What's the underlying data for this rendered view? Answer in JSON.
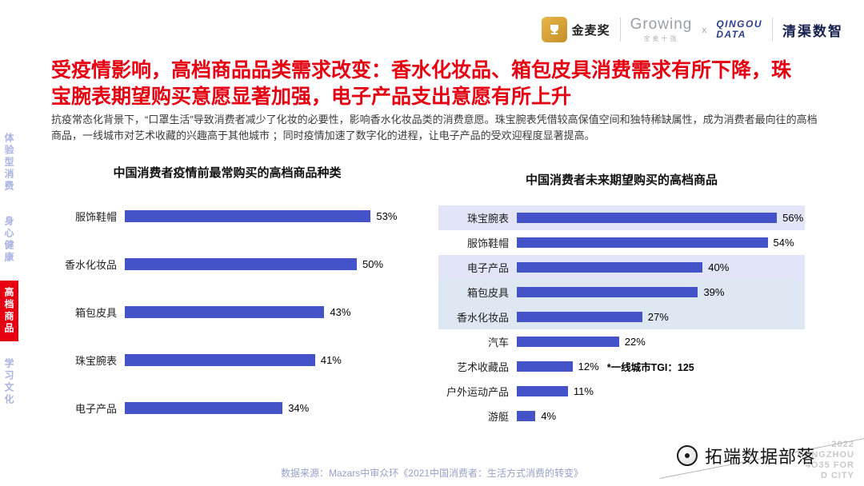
{
  "header": {
    "logos": {
      "jinmai": {
        "name": "金麦奖"
      },
      "growing": {
        "name": "Growing",
        "sub": "金麦十强"
      },
      "separator": "x",
      "qingou": {
        "line1": "QINGOU",
        "line2": "DATA",
        "brand": "清渠数智"
      }
    }
  },
  "title": {
    "text": "受疫情影响，高档商品品类需求改变：香水化妆品、箱包皮具消费需求有所下降，珠宝腕表期望购买意愿显著加强，电子产品支出意愿有所上升",
    "color": "#e60012"
  },
  "intro": "抗疫常态化背景下，“口罩生活”导致消费者减少了化妆的必要性，影响香水化妆品类的消费意愿。珠宝腕表凭借较高保值空间和独特稀缺属性，成为消费者最向往的高档商品，一线城市对艺术收藏的兴趣高于其他城市 ；同时疫情加速了数字化的进程，让电子产品的受欢迎程度显著提高。",
  "sidebar": {
    "items": [
      {
        "label": "体验型消费",
        "active": false
      },
      {
        "label": "身心健康",
        "active": false
      },
      {
        "label": "高档商品",
        "active": true
      },
      {
        "label": "学习文化",
        "active": false
      }
    ],
    "active_bg": "#e60012",
    "inactive_color": "#a9b2e2"
  },
  "chart_data": [
    {
      "type": "bar",
      "orientation": "horizontal",
      "title": "中国消费者疫情前最常购买的高档商品种类",
      "categories": [
        "服饰鞋帽",
        "香水化妆品",
        "箱包皮具",
        "珠宝腕表",
        "电子产品"
      ],
      "values": [
        53,
        50,
        43,
        41,
        34
      ],
      "unit": "%",
      "bar_color": "#4454c8",
      "xlim": [
        0,
        60
      ],
      "grid": false,
      "legend": "none"
    },
    {
      "type": "bar",
      "orientation": "horizontal",
      "title": "中国消费者未来期望购买的高档商品",
      "categories": [
        "珠宝腕表",
        "服饰鞋帽",
        "电子产品",
        "箱包皮具",
        "香水化妆品",
        "汽车",
        "艺术收藏品",
        "户外运动产品",
        "游艇"
      ],
      "values": [
        56,
        54,
        40,
        39,
        27,
        22,
        12,
        11,
        4
      ],
      "unit": "%",
      "bar_color": "#4454c8",
      "xlim": [
        0,
        62
      ],
      "grid": false,
      "legend": "none",
      "row_highlights": [
        "lavender",
        null,
        "lavender",
        "blue",
        "blue",
        null,
        null,
        null,
        null
      ],
      "highlight_colors": {
        "lavender": "#e2e4f8",
        "blue": "#dde8f3"
      },
      "annotations": [
        {
          "row": 6,
          "text": "*一线城市TGI：125"
        }
      ]
    }
  ],
  "footer": {
    "source": "数据来源：Mazars中审众环《2021中国消费者：生活方式消费的转变》"
  },
  "watermark": {
    "brand": "拓端数据部落",
    "corner_lines": [
      "2022",
      "HANGZHOU",
      "4O35 FOR",
      "D CITY"
    ]
  }
}
